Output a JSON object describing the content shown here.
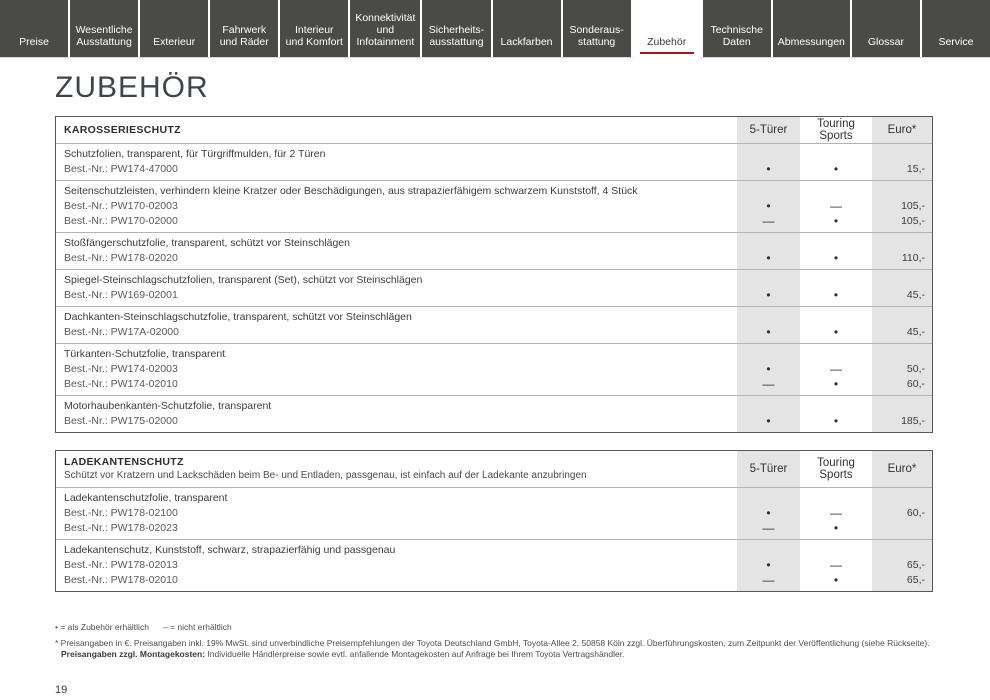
{
  "tabs": {
    "items": [
      {
        "label": "Preise"
      },
      {
        "label": "Wesentliche Ausstattung"
      },
      {
        "label": "Exterieur"
      },
      {
        "label": "Fahrwerk und Räder"
      },
      {
        "label": "Interieur und Komfort"
      },
      {
        "label": "Konnektivität und Infotainment"
      },
      {
        "label": "Sicherheits-ausstattung"
      },
      {
        "label": "Lackfarben"
      },
      {
        "label": "Sonderaus-stattung"
      },
      {
        "label": "Zubehör"
      },
      {
        "label": "Technische Daten"
      },
      {
        "label": "Abmessungen"
      },
      {
        "label": "Glossar"
      },
      {
        "label": "Service"
      }
    ],
    "active_label": "Zubehör"
  },
  "page": {
    "title": "ZUBEHÖR",
    "number": "19"
  },
  "columns": {
    "c1": "5-Türer",
    "c2": "Touring Sports",
    "c3": "Euro*"
  },
  "colors": {
    "accent_red": "#b0111b",
    "tab_background": "#4a4a47",
    "column_band_gray": "#e4e4e4"
  },
  "table1": {
    "section_title": "KAROSSERIESCHUTZ",
    "rows": [
      {
        "description": "Schutzfolien, transparent, für Türgriffmulden, für 2 Türen",
        "lines": [
          {
            "best_nr": "Best.-Nr.: PW174-47000",
            "five_door": "•",
            "touring": "•",
            "price": "15,-"
          }
        ]
      },
      {
        "description": "Seitenschutzleisten, verhindern kleine Kratzer oder Beschädigungen, aus strapazierfähigem schwarzem Kunststoff, 4 Stück",
        "lines": [
          {
            "best_nr": "Best.-Nr.: PW170-02003",
            "five_door": "•",
            "touring": "—",
            "price": "105,-"
          },
          {
            "best_nr": "Best.-Nr.: PW170-02000",
            "five_door": "—",
            "touring": "•",
            "price": "105,-"
          }
        ]
      },
      {
        "description": "Stoßfängerschutzfolie, transparent, schützt vor Steinschlägen",
        "lines": [
          {
            "best_nr": "Best.-Nr.: PW178-02020",
            "five_door": "•",
            "touring": "•",
            "price": "110,-"
          }
        ]
      },
      {
        "description": "Spiegel-Steinschlagschutzfolien, transparent (Set), schützt vor Steinschlägen",
        "lines": [
          {
            "best_nr": "Best.-Nr.: PW169-02001",
            "five_door": "•",
            "touring": "•",
            "price": "45,-"
          }
        ]
      },
      {
        "description": "Dachkanten-Steinschlagschutzfolie, transparent, schützt vor Steinschlägen",
        "lines": [
          {
            "best_nr": "Best.-Nr.: PW17A-02000",
            "five_door": "•",
            "touring": "•",
            "price": "45,-"
          }
        ]
      },
      {
        "description": "Türkanten-Schutzfolie, transparent",
        "lines": [
          {
            "best_nr": "Best.-Nr.: PW174-02003",
            "five_door": "•",
            "touring": "—",
            "price": "50,-"
          },
          {
            "best_nr": "Best.-Nr.: PW174-02010",
            "five_door": "—",
            "touring": "•",
            "price": "60,-"
          }
        ]
      },
      {
        "description": "Motorhaubenkanten-Schutzfolie, transparent",
        "lines": [
          {
            "best_nr": "Best.-Nr.: PW175-02000",
            "five_door": "•",
            "touring": "•",
            "price": "185,-"
          }
        ]
      }
    ]
  },
  "table2": {
    "section_title": "LADEKANTENSCHUTZ",
    "section_subtitle": "Schützt vor Kratzern und Lackschäden beim Be- und Entladen, passgenau, ist einfach auf der Ladekante anzubringen",
    "rows": [
      {
        "description": "Ladekantenschutzfolie, transparent",
        "lines": [
          {
            "best_nr": "Best.-Nr.: PW178-02100",
            "five_door": "•",
            "touring": "—",
            "price": "60,-"
          },
          {
            "best_nr": "Best.-Nr.: PW178-02023",
            "five_door": "—",
            "touring": "•",
            "price": ""
          }
        ]
      },
      {
        "description": "Ladekantenschutz, Kunststoff, schwarz, strapazierfähig und passgenau",
        "lines": [
          {
            "best_nr": "Best.-Nr.: PW178-02013",
            "five_door": "•",
            "touring": "—",
            "price": "65,-"
          },
          {
            "best_nr": "Best.-Nr.: PW178-02010",
            "five_door": "—",
            "touring": "•",
            "price": "65,-"
          }
        ]
      }
    ]
  },
  "footer": {
    "legend_available": "• = als Zubehör erhältlich",
    "legend_not_available": "– = nicht erhältlich",
    "footnote_prices": "* Preisangaben in €. Preisangaben inkl. 19% MwSt. sind unverbindliche Preisempfehlungen der Toyota Deutschland GmbH, Toyota-Allee 2, 50858 Köln zzgl. Überführungskosten, zum Zeitpunkt der Veröffentlichung (siehe Rückseite).",
    "footnote_montage_label": "Preisangaben zzgl. Montagekosten:",
    "footnote_montage_text": " Individuelle Händlerpreise sowie evtl. anfallende Montagekosten auf Anfrage bei Ihrem Toyota Vertragshändler."
  }
}
